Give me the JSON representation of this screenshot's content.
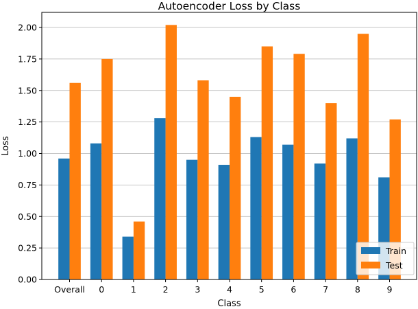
{
  "chart_data": {
    "type": "bar",
    "title": "Autoencoder Loss by Class",
    "xlabel": "Class",
    "ylabel": "Loss",
    "categories": [
      "Overall",
      "0",
      "1",
      "2",
      "3",
      "4",
      "5",
      "6",
      "7",
      "8",
      "9"
    ],
    "series": [
      {
        "name": "Train",
        "color": "#1f77b4",
        "values": [
          0.96,
          1.08,
          0.34,
          1.28,
          0.95,
          0.91,
          1.13,
          1.07,
          0.92,
          1.12,
          0.81
        ]
      },
      {
        "name": "Test",
        "color": "#ff7f0e",
        "values": [
          1.56,
          1.75,
          0.46,
          2.02,
          1.58,
          1.45,
          1.85,
          1.79,
          1.4,
          1.95,
          1.27
        ]
      }
    ],
    "ylim": [
      0,
      2.12
    ],
    "yticks": [
      "0.00",
      "0.25",
      "0.50",
      "0.75",
      "1.00",
      "1.25",
      "1.50",
      "1.75",
      "2.00"
    ],
    "grid": "y",
    "legend": "bottom-right"
  }
}
